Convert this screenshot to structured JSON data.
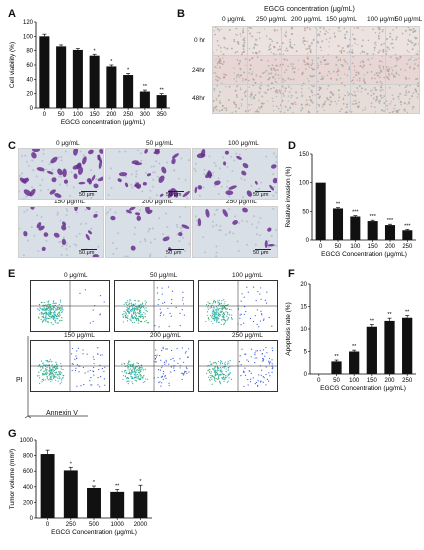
{
  "panels": {
    "A": {
      "letter": "A",
      "chart_data": {
        "type": "bar",
        "categories": [
          "0",
          "50",
          "100",
          "150",
          "200",
          "250",
          "300",
          "350"
        ],
        "values": [
          100,
          86,
          81,
          73,
          58,
          46,
          23,
          18
        ],
        "errors": [
          3,
          2,
          2,
          2,
          2,
          2,
          2,
          2
        ],
        "sig": [
          "",
          "",
          "",
          "*",
          "*",
          "*",
          "**",
          "**"
        ],
        "xlabel": "EGCG concentration (μg/mL)",
        "ylabel": "Cell viability (%)",
        "ylim": [
          0,
          120
        ],
        "yticks": [
          "0",
          "20",
          "40",
          "60",
          "80",
          "100",
          "120"
        ]
      }
    },
    "B": {
      "letter": "B",
      "title": "EGCG concentration (μg/mL)",
      "columns": [
        "0 μg/mL",
        "250 μg/mL",
        "200 μg/mL",
        "150 μg/mL",
        "100 μg/mL",
        "50 μg/mL"
      ],
      "rows": [
        "0 hr",
        "24hr",
        "48hr"
      ]
    },
    "C": {
      "letter": "C",
      "captions": [
        "0 μg/mL",
        "50 μg/mL",
        "100 μg/mL",
        "150 μg/mL",
        "200 μg/mL",
        "250 μg/mL"
      ],
      "scale": "50 μm"
    },
    "D": {
      "letter": "D",
      "chart_data": {
        "type": "bar",
        "categories": [
          "0",
          "50",
          "100",
          "150",
          "200",
          "250"
        ],
        "values": [
          100,
          55,
          41,
          33,
          26,
          17
        ],
        "errors": [
          0,
          1.5,
          1.5,
          1.5,
          1.5,
          1.5
        ],
        "sig": [
          "",
          "**",
          "***",
          "***",
          "***",
          "***"
        ],
        "xlabel": "EGCG Concentration (μg/mL)",
        "ylabel": "Relative invasion (%)",
        "ylim": [
          0,
          150
        ],
        "yticks": [
          "0",
          "50",
          "100",
          "150"
        ]
      }
    },
    "E": {
      "letter": "E",
      "captions": [
        "0 μg/mL",
        "50 μg/mL",
        "100 μg/mL",
        "150 μg/mL",
        "200 μg/mL",
        "250 μg/mL"
      ],
      "y_axis": "PI",
      "x_axis": "Annexin V"
    },
    "F": {
      "letter": "F",
      "chart_data": {
        "type": "bar",
        "categories": [
          "0",
          "50",
          "100",
          "150",
          "200",
          "250"
        ],
        "values": [
          0,
          2.8,
          5.0,
          10.5,
          11.8,
          12.5
        ],
        "errors": [
          0,
          0.3,
          0.3,
          0.5,
          0.6,
          0.5
        ],
        "sig": [
          "",
          "**",
          "**",
          "**",
          "**",
          "**"
        ],
        "xlabel": "EGCG Concentration (μg/mL)",
        "ylabel": "Apoptosis rate (%)",
        "ylim": [
          0,
          20
        ],
        "yticks": [
          "0",
          "5",
          "10",
          "15",
          "20"
        ]
      }
    },
    "G": {
      "letter": "G",
      "chart_data": {
        "type": "bar",
        "categories": [
          "0",
          "250",
          "500",
          "1000",
          "2000"
        ],
        "values": [
          820,
          610,
          385,
          335,
          340
        ],
        "errors": [
          50,
          40,
          25,
          30,
          80
        ],
        "sig": [
          "",
          "*",
          "*",
          "**",
          "*"
        ],
        "xlabel": "EGCG Concentration (μg/mL)",
        "ylabel": "Tumor volume (mm³)",
        "ylim": [
          0,
          1000
        ],
        "yticks": [
          "0",
          "200",
          "400",
          "600",
          "800",
          "1000"
        ]
      }
    }
  }
}
